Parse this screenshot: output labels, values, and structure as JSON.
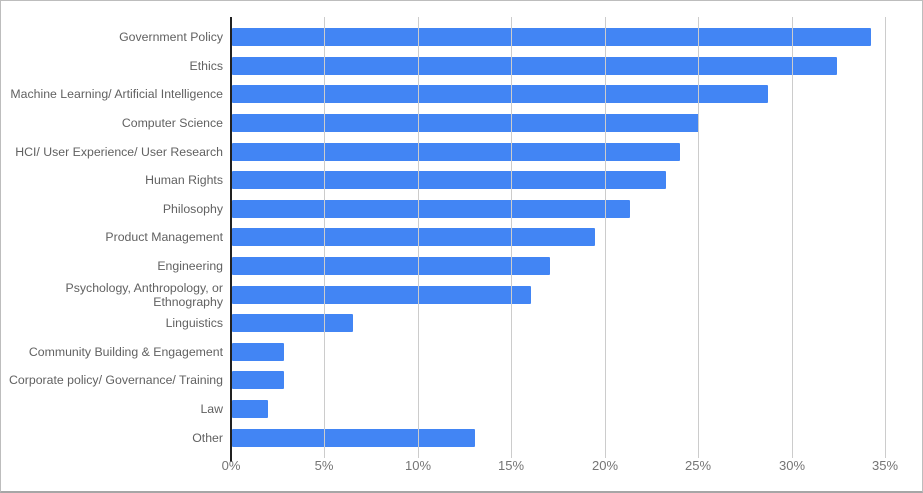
{
  "window": {
    "background": "#ffffff",
    "border_color": "#bdbdbd"
  },
  "chart_data": {
    "type": "bar",
    "orientation": "horizontal",
    "title": "",
    "xlabel": "",
    "ylabel": "",
    "categories": [
      "Government Policy",
      "Ethics",
      "Machine Learning/ Artificial Intelligence",
      "Computer Science",
      "HCI/ User Experience/ User Research",
      "Human Rights",
      "Philosophy",
      "Product Management",
      "Engineering",
      "Psychology, Anthropology, or Ethnography",
      "Linguistics",
      "Community Building & Engagement",
      "Corporate policy/ Governance/ Training",
      "Law",
      "Other"
    ],
    "values": [
      34.2,
      32.4,
      28.7,
      25,
      24,
      23.2,
      21.3,
      19.4,
      17,
      16,
      6.5,
      2.8,
      2.8,
      1.9,
      13
    ],
    "value_unit": "%",
    "xlim": [
      0,
      35
    ],
    "x_tick_step": 5,
    "x_ticks": [
      "0%",
      "5%",
      "10%",
      "15%",
      "20%",
      "25%",
      "30%",
      "35%"
    ],
    "grid": true,
    "legend": "none",
    "colors": {
      "bar": "#4285f4",
      "category_label": "#616161",
      "tick_label": "#757575",
      "gridline": "#cccccc",
      "axis_line": "#212121"
    }
  }
}
